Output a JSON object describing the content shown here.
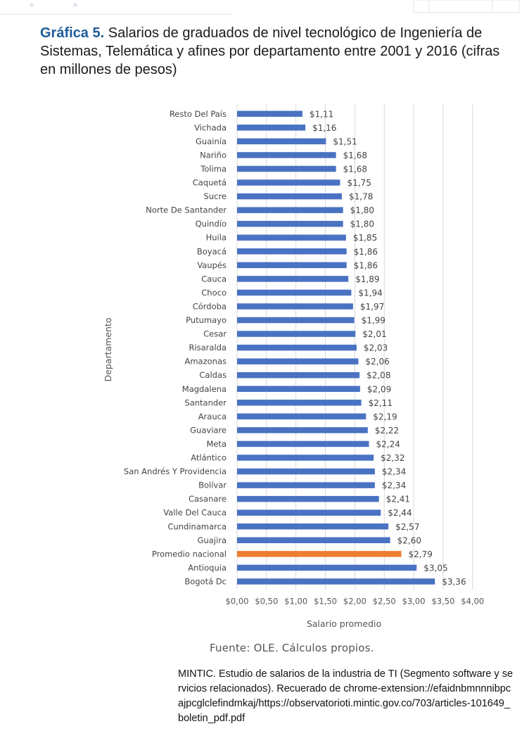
{
  "figure": {
    "label": "Gráfica 5.",
    "title": "Salarios de graduados de nivel tecnológico de Ingeniería de Sistemas, Telemática y afines por departamento entre 2001 y 2016 (cifras en millones de pesos)",
    "source": "Fuente: OLE. Cálculos propios.",
    "reference": "MINTIC. Estudio de salarios de la industria de TI  (Segmento software y servicios relacionados). Recuerado de chrome-extension://efaidnbmnnnibpcajpcglclefindmkaj/https://observatorioti.mintic.gov.co/703/articles-101649_boletin_pdf.pdf"
  },
  "chart_data": {
    "type": "bar",
    "orientation": "horizontal",
    "xlabel": "Salario promedio",
    "ylabel": "Departamento",
    "xlim": [
      0,
      4
    ],
    "x_ticks": [
      0,
      0.5,
      1,
      1.5,
      2,
      2.5,
      3,
      3.5,
      4
    ],
    "x_tick_labels": [
      "$0,00",
      "$0,50",
      "$1,00",
      "$1,50",
      "$2,00",
      "$2,50",
      "$3,00",
      "$3,50",
      "$4,00"
    ],
    "grid": "vertical",
    "bar_color": "#4a72c2",
    "highlight_color": "#ed7d31",
    "categories": [
      "Resto Del País",
      "Vichada",
      "Guainía",
      "Nariño",
      "Tolima",
      "Caquetá",
      "Sucre",
      "Norte De Santander",
      "Quindío",
      "Huila",
      "Boyacá",
      "Vaupés",
      "Cauca",
      "Choco",
      "Córdoba",
      "Putumayo",
      "Cesar",
      "Risaralda",
      "Amazonas",
      "Caldas",
      "Magdalena",
      "Santander",
      "Arauca",
      "Guaviare",
      "Meta",
      "Atlántico",
      "San Andrés Y Providencia",
      "Bolívar",
      "Casanare",
      "Valle Del Cauca",
      "Cundinamarca",
      "Guajira",
      "Promedio nacional",
      "Antioquia",
      "Bogotá Dc"
    ],
    "values": [
      1.11,
      1.16,
      1.51,
      1.68,
      1.68,
      1.75,
      1.78,
      1.8,
      1.8,
      1.85,
      1.86,
      1.86,
      1.89,
      1.94,
      1.97,
      1.99,
      2.01,
      2.03,
      2.06,
      2.08,
      2.09,
      2.11,
      2.19,
      2.22,
      2.24,
      2.32,
      2.34,
      2.34,
      2.41,
      2.44,
      2.57,
      2.6,
      2.79,
      3.05,
      3.36
    ],
    "data_labels": [
      "$1,11",
      "$1,16",
      "$1,51",
      "$1,68",
      "$1,68",
      "$1,75",
      "$1,78",
      "$1,80",
      "$1,80",
      "$1,85",
      "$1,86",
      "$1,86",
      "$1,89",
      "$1,94",
      "$1,97",
      "$1,99",
      "$2,01",
      "$2,03",
      "$2,06",
      "$2,08",
      "$2,09",
      "$2,11",
      "$2,19",
      "$2,22",
      "$2,24",
      "$2,32",
      "$2,34",
      "$2,34",
      "$2,41",
      "$2,44",
      "$2,57",
      "$2,60",
      "$2,79",
      "$3,05",
      "$3,36"
    ],
    "highlight_category": "Promedio nacional"
  }
}
